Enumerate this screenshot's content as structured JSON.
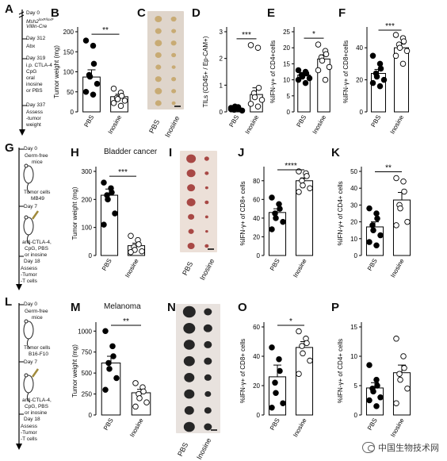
{
  "panel_letters": {
    "A": "A",
    "B": "B",
    "C": "C",
    "D": "D",
    "E": "E",
    "F": "F",
    "G": "G",
    "H": "H",
    "I": "I",
    "J": "J",
    "K": "K",
    "L": "L",
    "M": "M",
    "N": "N",
    "O": "O",
    "P": "P"
  },
  "timelines": {
    "A": [
      {
        "text": "Day 0"
      },
      {
        "text": "Msh2",
        "sup": "loxP/loxP",
        "italic": true
      },
      {
        "text": "Villin-Cre",
        "italic": true
      },
      {
        "text": "Day 312"
      },
      {
        "text": "Abx"
      },
      {
        "text": "Day 319"
      },
      {
        "text": "i.p. CTLA-4"
      },
      {
        "text": "CpG"
      },
      {
        "text": "oral"
      },
      {
        "text": "inosine"
      },
      {
        "text": "or PBS"
      },
      {
        "text": "Day 337"
      },
      {
        "text": "Assess"
      },
      {
        "text": "-tumor"
      },
      {
        "text": "weight"
      }
    ],
    "G": [
      "Day 0",
      "Germ-free",
      "mice",
      "Tumor cells",
      "MB49",
      "Day 7",
      "anti-CTLA-4,",
      "CpG, PBS",
      "or inosine",
      "Day 18",
      "Assess",
      "-Tumor",
      "-T cells"
    ],
    "L": [
      "Day 0",
      "Germ-free",
      "mice",
      "Tumor cells",
      "B16-F10",
      "Day 7",
      "anti-CTLA-4,",
      "CpG, PBS",
      "or inosine",
      "Day 18",
      "Assess",
      "-Tumor",
      "-T cells"
    ]
  },
  "titles": {
    "H": "Bladder cancer",
    "M": "Melanoma"
  },
  "photo_labels": [
    "PBS",
    "Inosine"
  ],
  "colors": {
    "filled": "#000000",
    "open": "#ffffff",
    "tumor_colon": "#c8ab74",
    "tumor_bladder": "#a84845",
    "tumor_melanoma": "#262626",
    "photo_bg_C": "#dfd5cb",
    "photo_bg_I": "#ece0d8",
    "photo_bg_N": "#e8e2de"
  },
  "watermark": "中国生物技术网",
  "chart_data": [
    {
      "panel": "B",
      "type": "scatter_bar",
      "categories": [
        "PBS",
        "Inosine"
      ],
      "ylabel": "Tumor weight (mg)",
      "ylim": [
        0,
        200
      ],
      "yticks": [
        0,
        50,
        100,
        150,
        200
      ],
      "significance": "**",
      "series": [
        {
          "name": "PBS",
          "mean": 87,
          "sem": 18,
          "values": [
            178,
            165,
            120,
            92,
            88,
            70,
            50,
            43
          ]
        },
        {
          "name": "Inosine",
          "mean": 38,
          "sem": 6,
          "values": [
            58,
            48,
            40,
            35,
            32,
            28,
            22,
            15
          ]
        }
      ]
    },
    {
      "panel": "D",
      "type": "scatter_bar",
      "categories": [
        "PBS",
        "Inosine"
      ],
      "ylabel": "TILs (CD45+ / Ep-CAM+)",
      "ylim": [
        0,
        3
      ],
      "yticks": [
        0,
        1,
        2,
        3
      ],
      "significance": "***",
      "series": [
        {
          "name": "PBS",
          "mean": 0.12,
          "sem": 0.03,
          "values": [
            0.15,
            0.12,
            0.1,
            0.08,
            0.2,
            0.05,
            0.1,
            0.18
          ]
        },
        {
          "name": "Inosine",
          "mean": 0.65,
          "sem": 0.25,
          "values": [
            2.5,
            2.4,
            0.9,
            0.7,
            0.55,
            0.45,
            0.3,
            0.2
          ]
        }
      ]
    },
    {
      "panel": "E",
      "type": "scatter_bar",
      "categories": [
        "PBS",
        "Inosine"
      ],
      "ylabel": "%IFN-γ+ of CD4+cells",
      "ylim": [
        0,
        25
      ],
      "yticks": [
        0,
        5,
        10,
        15,
        20,
        25
      ],
      "significance": "*",
      "series": [
        {
          "name": "PBS",
          "mean": 11.5,
          "sem": 0.6,
          "values": [
            13,
            12.5,
            12,
            11.5,
            11,
            10.5,
            10,
            9
          ]
        },
        {
          "name": "Inosine",
          "mean": 16.5,
          "sem": 1.3,
          "values": [
            21,
            19,
            18,
            17,
            16,
            14,
            13,
            10
          ]
        }
      ]
    },
    {
      "panel": "F",
      "type": "scatter_bar",
      "categories": [
        "PBS",
        "Inosine"
      ],
      "ylabel": "%IFN-γ+ of CD8+cells",
      "ylim": [
        0,
        50
      ],
      "yticks": [
        0,
        20,
        40
      ],
      "significance": "***",
      "series": [
        {
          "name": "PBS",
          "mean": 24,
          "sem": 2.5,
          "values": [
            35,
            30,
            27,
            24,
            22,
            20,
            18,
            16
          ]
        },
        {
          "name": "Inosine",
          "mean": 40,
          "sem": 2.3,
          "values": [
            48,
            46,
            44,
            42,
            40,
            38,
            35,
            30
          ]
        }
      ]
    },
    {
      "panel": "H",
      "type": "scatter_bar",
      "categories": [
        "PBS",
        "Inosine"
      ],
      "ylabel": "Tumor weight (mg)",
      "ylim": [
        0,
        300
      ],
      "yticks": [
        0,
        100,
        200,
        300
      ],
      "significance": "***",
      "series": [
        {
          "name": "PBS",
          "mean": 215,
          "sem": 22,
          "values": [
            260,
            240,
            225,
            215,
            200,
            150,
            110
          ]
        },
        {
          "name": "Inosine",
          "mean": 35,
          "sem": 9,
          "values": [
            70,
            55,
            40,
            30,
            20,
            15,
            12
          ]
        }
      ]
    },
    {
      "panel": "J",
      "type": "scatter_bar",
      "categories": [
        "PBS",
        "Inosine"
      ],
      "ylabel": "%IFN-γ+ of CD8+ cells",
      "ylim": [
        0,
        90
      ],
      "yticks": [
        0,
        20,
        40,
        60,
        80
      ],
      "significance": "****",
      "series": [
        {
          "name": "PBS",
          "mean": 46,
          "sem": 4,
          "values": [
            62,
            55,
            50,
            45,
            40,
            36,
            28
          ]
        },
        {
          "name": "Inosine",
          "mean": 80,
          "sem": 3,
          "values": [
            90,
            88,
            85,
            80,
            75,
            72,
            68
          ]
        }
      ]
    },
    {
      "panel": "K",
      "type": "scatter_bar",
      "categories": [
        "PBS",
        "Inosine"
      ],
      "ylabel": "%IFN-γ+ of CD4+ cells",
      "ylim": [
        0,
        50
      ],
      "yticks": [
        0,
        10,
        20,
        30,
        40,
        50
      ],
      "significance": "**",
      "series": [
        {
          "name": "PBS",
          "mean": 17,
          "sem": 3,
          "values": [
            28,
            25,
            22,
            18,
            15,
            12,
            8,
            6
          ]
        },
        {
          "name": "Inosine",
          "mean": 33,
          "sem": 4.5,
          "values": [
            46,
            44,
            38,
            30,
            28,
            20,
            18
          ]
        }
      ]
    },
    {
      "panel": "M",
      "type": "scatter_bar",
      "categories": [
        "PBS",
        "Inosine"
      ],
      "ylabel": "Tumor weight (mg)",
      "ylim": [
        0,
        1050
      ],
      "yticks": [
        0,
        250,
        500,
        750,
        1000
      ],
      "significance": "**",
      "series": [
        {
          "name": "PBS",
          "mean": 620,
          "sem": 80,
          "values": [
            1000,
            820,
            700,
            620,
            550,
            440,
            300
          ]
        },
        {
          "name": "Inosine",
          "mean": 265,
          "sem": 40,
          "values": [
            380,
            330,
            280,
            250,
            200,
            150,
            100
          ]
        }
      ]
    },
    {
      "panel": "O",
      "type": "scatter_bar",
      "categories": [
        "PBS",
        "Inosine"
      ],
      "ylabel": "%IFN-γ+ of CD8+ cells",
      "ylim": [
        0,
        60
      ],
      "yticks": [
        0,
        20,
        40,
        60
      ],
      "significance": "*",
      "series": [
        {
          "name": "PBS",
          "mean": 26,
          "sem": 8,
          "values": [
            46,
            38,
            30,
            22,
            15,
            8,
            5
          ]
        },
        {
          "name": "Inosine",
          "mean": 46,
          "sem": 4,
          "values": [
            57,
            52,
            49,
            47,
            42,
            37,
            28
          ]
        }
      ]
    },
    {
      "panel": "P",
      "type": "scatter_bar",
      "categories": [
        "PBS",
        "Inosine"
      ],
      "ylabel": "%IFN-γ+ of CD4+ cells",
      "ylim": [
        0,
        15
      ],
      "yticks": [
        0,
        5,
        10,
        15
      ],
      "significance": "",
      "series": [
        {
          "name": "PBS",
          "mean": 4.6,
          "sem": 0.9,
          "values": [
            8.5,
            6,
            5,
            4.5,
            4,
            3,
            2.5,
            1.5
          ]
        },
        {
          "name": "Inosine",
          "mean": 7.2,
          "sem": 1.3,
          "values": [
            13,
            10,
            8,
            7,
            6,
            4.5,
            2
          ]
        }
      ]
    }
  ]
}
